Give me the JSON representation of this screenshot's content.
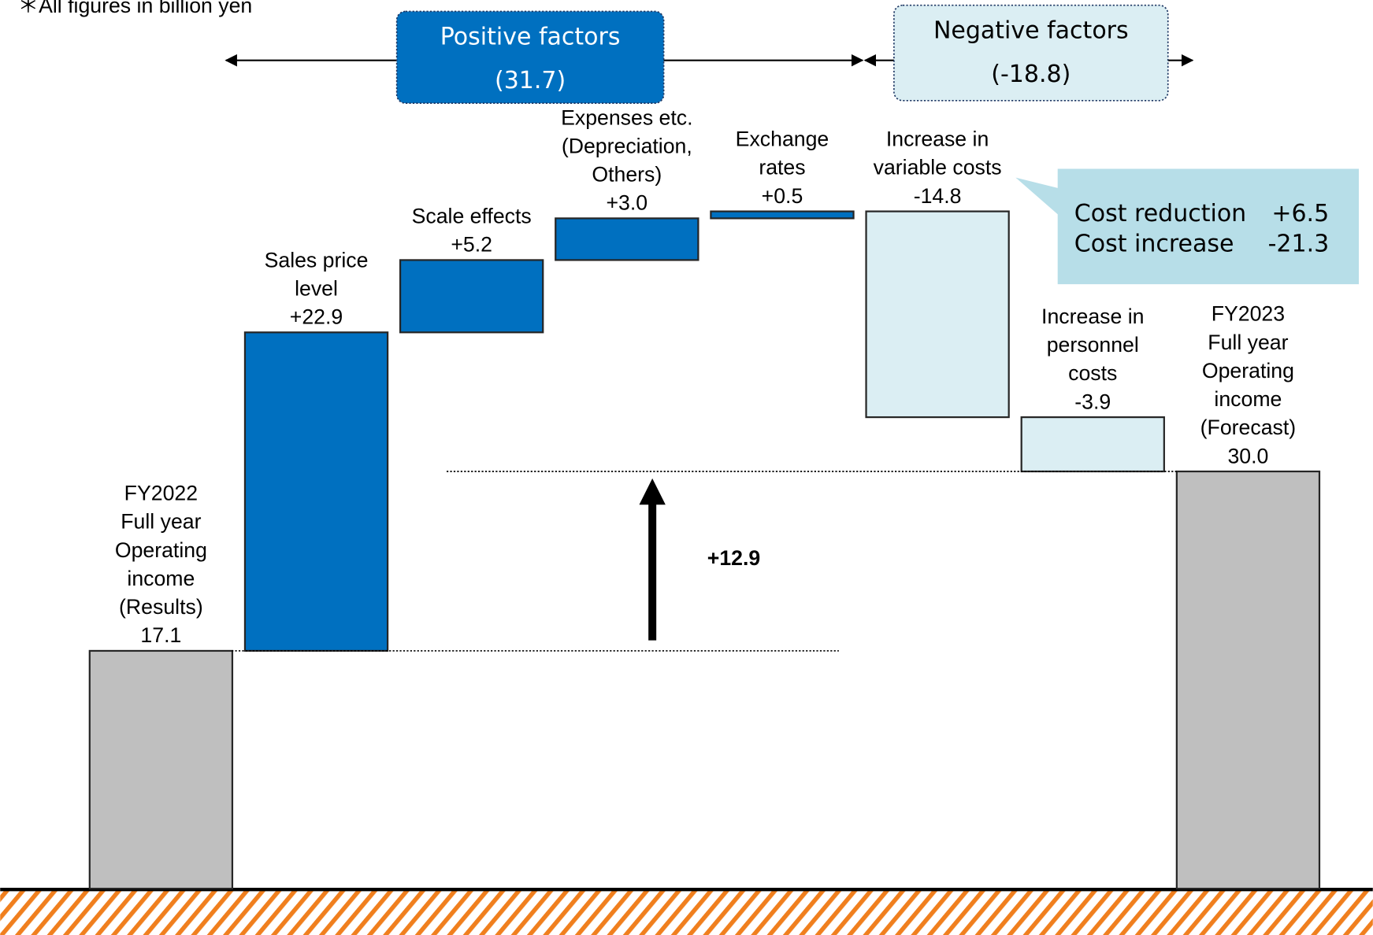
{
  "chart_data": {
    "type": "waterfall",
    "note": "＊All figures in billion yen",
    "categories": [
      [
        "FY2022",
        "Full year",
        "Operating",
        "income",
        "(Results)"
      ],
      [
        "Sales price",
        "level"
      ],
      [
        "Scale effects"
      ],
      [
        "Expenses etc.",
        "(Depreciation,",
        "Others)"
      ],
      [
        "Exchange",
        "rates"
      ],
      [
        "Increase in",
        "variable costs"
      ],
      [
        "Increase in",
        "personnel",
        "costs"
      ],
      [
        "FY2023",
        "Full year",
        "Operating",
        "income",
        "(Forecast)"
      ]
    ],
    "values": [
      17.1,
      22.9,
      5.2,
      3.0,
      0.5,
      -14.8,
      -3.9,
      30.0
    ],
    "value_labels": [
      "17.1",
      "+22.9",
      "+5.2",
      "+3.0",
      "+0.5",
      "-14.8",
      "-3.9",
      "30.0"
    ],
    "measure": [
      "absolute",
      "relative",
      "relative",
      "relative",
      "relative",
      "relative",
      "relative",
      "total"
    ],
    "colors": {
      "total": "#bfbfbf",
      "increase": "#0070c0",
      "decrease": "#dbeef3"
    },
    "groups": [
      {
        "name": "Positive factors",
        "value": 31.7,
        "value_label": "(31.7)",
        "color": "#0070c0"
      },
      {
        "name": "Negative factors",
        "value": -18.8,
        "value_label": "(-18.8)",
        "color": "#dbeef3"
      }
    ],
    "breakdown": [
      {
        "name": "Cost reduction",
        "value": 6.5,
        "value_label": "+6.5"
      },
      {
        "name": "Cost increase",
        "value": -21.3,
        "value_label": "-21.3"
      }
    ],
    "difference": {
      "value": 12.9,
      "label": "+12.9"
    }
  }
}
